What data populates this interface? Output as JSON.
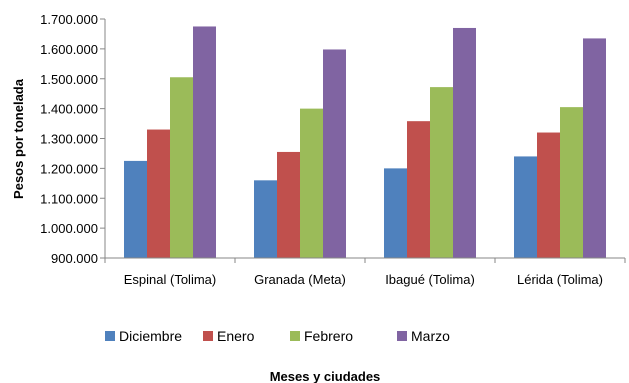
{
  "chart_data": {
    "type": "bar",
    "categories": [
      "Espinal (Tolima)",
      "Granada (Meta)",
      "Ibagué (Tolima)",
      "Lérida (Tolima)"
    ],
    "series": [
      {
        "name": "Diciembre",
        "color": "#4f81bd",
        "values": [
          1225000,
          1160000,
          1200000,
          1240000
        ]
      },
      {
        "name": "Enero",
        "color": "#c0504d",
        "values": [
          1330000,
          1255000,
          1358000,
          1320000
        ]
      },
      {
        "name": "Febrero",
        "color": "#9bbb59",
        "values": [
          1505000,
          1400000,
          1472000,
          1405000
        ]
      },
      {
        "name": "Marzo",
        "color": "#8064a2",
        "values": [
          1675000,
          1598000,
          1670000,
          1635000
        ]
      }
    ],
    "xlabel": "Meses y ciudades",
    "ylabel": "Pesos por tonelada",
    "ylim": [
      900000,
      1700000
    ],
    "yticks": [
      900000,
      1000000,
      1100000,
      1200000,
      1300000,
      1400000,
      1500000,
      1600000,
      1700000
    ],
    "ytick_labels": [
      "900.000",
      "1.000.000",
      "1.100.000",
      "1.200.000",
      "1.300.000",
      "1.400.000",
      "1.500.000",
      "1.600.000",
      "1.700.000"
    ],
    "grid": false,
    "legend_position": "bottom"
  }
}
